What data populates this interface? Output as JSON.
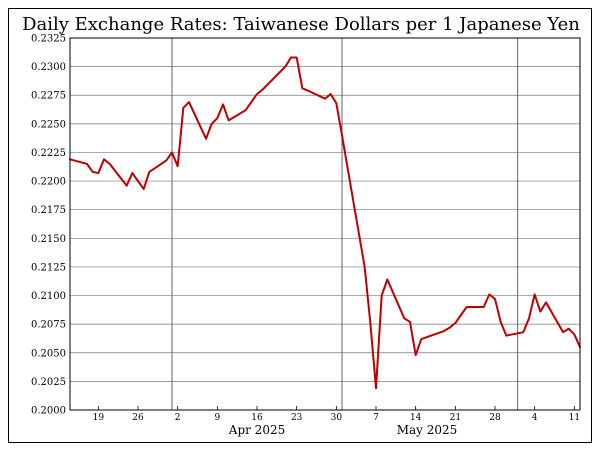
{
  "chart_data": {
    "type": "line",
    "title": "Daily Exchange Rates: Taiwanese Dollars per 1 Japanese Yen",
    "xlabel": "",
    "ylabel": "",
    "ylim": [
      0.2,
      0.2325
    ],
    "yticks": [
      "0.2000",
      "0.2025",
      "0.2050",
      "0.2075",
      "0.2100",
      "0.2125",
      "0.2150",
      "0.2175",
      "0.2200",
      "0.2225",
      "0.2250",
      "0.2275",
      "0.2300",
      "0.2325"
    ],
    "xticks": [
      {
        "date": "2025-03-19",
        "label": "19"
      },
      {
        "date": "2025-03-26",
        "label": "26"
      },
      {
        "date": "2025-04-02",
        "label": "2"
      },
      {
        "date": "2025-04-09",
        "label": "9"
      },
      {
        "date": "2025-04-16",
        "label": "16"
      },
      {
        "date": "2025-04-23",
        "label": "23"
      },
      {
        "date": "2025-04-30",
        "label": "30"
      },
      {
        "date": "2025-05-07",
        "label": "7"
      },
      {
        "date": "2025-05-14",
        "label": "14"
      },
      {
        "date": "2025-05-21",
        "label": "21"
      },
      {
        "date": "2025-05-28",
        "label": "28"
      },
      {
        "date": "2025-06-04",
        "label": "4"
      },
      {
        "date": "2025-06-11",
        "label": "11"
      }
    ],
    "month_boundaries": [
      "2025-04-01",
      "2025-05-01",
      "2025-06-01"
    ],
    "month_labels": [
      {
        "date": "2025-04-16",
        "label": "Apr 2025"
      },
      {
        "date": "2025-05-16",
        "label": "May 2025"
      }
    ],
    "xrange": [
      "2025-03-14",
      "2025-06-12"
    ],
    "grid": true,
    "line_color": "#c00000",
    "series": [
      {
        "name": "",
        "x": [
          "2025-03-14",
          "2025-03-17",
          "2025-03-18",
          "2025-03-19",
          "2025-03-20",
          "2025-03-21",
          "2025-03-24",
          "2025-03-25",
          "2025-03-26",
          "2025-03-27",
          "2025-03-28",
          "2025-03-31",
          "2025-04-01",
          "2025-04-02",
          "2025-04-03",
          "2025-04-04",
          "2025-04-07",
          "2025-04-08",
          "2025-04-09",
          "2025-04-10",
          "2025-04-11",
          "2025-04-14",
          "2025-04-15",
          "2025-04-16",
          "2025-04-17",
          "2025-04-21",
          "2025-04-22",
          "2025-04-23",
          "2025-04-24",
          "2025-04-25",
          "2025-04-28",
          "2025-04-29",
          "2025-04-30",
          "2025-05-01",
          "2025-05-02",
          "2025-05-05",
          "2025-05-06",
          "2025-05-07",
          "2025-05-08",
          "2025-05-09",
          "2025-05-12",
          "2025-05-13",
          "2025-05-14",
          "2025-05-15",
          "2025-05-19",
          "2025-05-20",
          "2025-05-21",
          "2025-05-22",
          "2025-05-23",
          "2025-05-26",
          "2025-05-27",
          "2025-05-28",
          "2025-05-29",
          "2025-05-30",
          "2025-06-02",
          "2025-06-03",
          "2025-06-04",
          "2025-06-05",
          "2025-06-06",
          "2025-06-09",
          "2025-06-10",
          "2025-06-11",
          "2025-06-12"
        ],
        "y": [
          0.2219,
          0.2215,
          0.2208,
          0.2207,
          0.2219,
          0.2215,
          0.2196,
          0.2207,
          0.22,
          0.2193,
          0.2208,
          0.2218,
          0.2225,
          0.2213,
          0.2264,
          0.2269,
          0.2237,
          0.225,
          0.2255,
          0.2267,
          0.2253,
          0.2262,
          0.2269,
          0.2276,
          0.228,
          0.23,
          0.2308,
          0.2308,
          0.2281,
          0.2279,
          0.2272,
          0.2276,
          0.2268,
          0.224,
          0.2211,
          0.2125,
          0.2076,
          0.2019,
          0.21,
          0.2114,
          0.208,
          0.2077,
          0.2048,
          0.2062,
          0.2069,
          0.2072,
          0.2076,
          0.2083,
          0.209,
          0.209,
          0.2101,
          0.2097,
          0.2077,
          0.2065,
          0.2068,
          0.208,
          0.2101,
          0.2086,
          0.2094,
          0.2068,
          0.2071,
          0.2066,
          0.2055
        ]
      }
    ]
  }
}
